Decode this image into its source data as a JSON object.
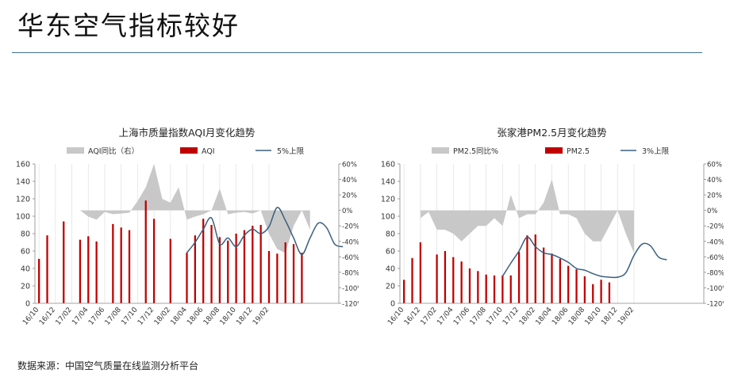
{
  "slide": {
    "title": "华东空气指标较好",
    "source": "数据来源：中国空气质量在线监测分析平台"
  },
  "colors": {
    "bar": "#c00000",
    "area": "#c8c8c8",
    "line": "#3a5f80",
    "rule": "#3f6f8f"
  },
  "chart_data": [
    {
      "type": "bar",
      "title": "上海市质量指数AQI月变化趋势",
      "legend": [
        "AQI同比（右）",
        "AQI",
        "5%上限"
      ],
      "legend_position": "top",
      "x_ticks": [
        "16/10",
        "16/12",
        "17/02",
        "17/04",
        "17/06",
        "17/08",
        "17/10",
        "17/12",
        "18/02",
        "18/04",
        "18/06",
        "18/08",
        "18/10",
        "18/12",
        "19/02"
      ],
      "x_start": "16/10",
      "left_axis": {
        "min": 0,
        "max": 160,
        "step": 20,
        "labels": [
          "0",
          "20",
          "40",
          "60",
          "80",
          "100",
          "120",
          "140",
          "160"
        ]
      },
      "right_axis": {
        "min": -120,
        "max": 60,
        "step": 20,
        "labels": [
          "-120%",
          "-100%",
          "-80%",
          "-60%",
          "-40%",
          "-20%",
          "0%",
          "20%",
          "40%",
          "60%"
        ]
      },
      "series": [
        {
          "name": "AQI",
          "kind": "bar",
          "axis": "left",
          "values": [
            51,
            78,
            null,
            94,
            null,
            73,
            77,
            71,
            null,
            91,
            87,
            84,
            null,
            118,
            97,
            null,
            74,
            null,
            58,
            78,
            97,
            90,
            76,
            72,
            80,
            84,
            89,
            90,
            60,
            57,
            70,
            68,
            58,
            null,
            null,
            null,
            null
          ]
        },
        {
          "name": "AQI同比（右）",
          "kind": "area",
          "axis": "right",
          "values": [
            null,
            null,
            null,
            null,
            null,
            0,
            -8,
            -12,
            -2,
            -5,
            -4,
            -3,
            12,
            30,
            60,
            15,
            10,
            30,
            -12,
            -8,
            -5,
            0,
            28,
            -5,
            -3,
            -2,
            -4,
            0,
            -30,
            -50,
            -55,
            -20,
            0,
            -25,
            null,
            null,
            null
          ]
        },
        {
          "name": "5%上限",
          "kind": "line",
          "axis": "left",
          "values": [
            null,
            null,
            null,
            null,
            null,
            null,
            null,
            null,
            null,
            null,
            null,
            null,
            null,
            null,
            null,
            null,
            null,
            null,
            58,
            70,
            85,
            98,
            68,
            75,
            65,
            78,
            85,
            80,
            88,
            110,
            95,
            75,
            56,
            75,
            92,
            87,
            68,
            65
          ]
        }
      ]
    },
    {
      "type": "bar",
      "title": "张家港PM2.5月变化趋势",
      "legend": [
        "PM2.5同比%",
        "PM2.5",
        "3%上限"
      ],
      "legend_position": "top",
      "x_ticks": [
        "16/10",
        "16/12",
        "17/02",
        "17/04",
        "17/06",
        "17/08",
        "17/10",
        "17/12",
        "18/02",
        "18/04",
        "18/06",
        "18/08",
        "18/10",
        "18/12",
        "19/02"
      ],
      "x_start": "16/10",
      "left_axis": {
        "min": 0,
        "max": 160,
        "step": 20,
        "labels": [
          "0",
          "20",
          "40",
          "60",
          "80",
          "100",
          "120",
          "140",
          "160"
        ]
      },
      "right_axis": {
        "min": -120,
        "max": 60,
        "step": 20,
        "labels": [
          "-120%",
          "-100%",
          "-80%",
          "-60%",
          "-40%",
          "-20%",
          "0%",
          "20%",
          "40%",
          "60%"
        ]
      },
      "series": [
        {
          "name": "PM2.5",
          "kind": "bar",
          "axis": "left",
          "values": [
            27,
            52,
            70,
            null,
            56,
            60,
            53,
            48,
            40,
            37,
            33,
            32,
            32,
            32,
            59,
            78,
            79,
            64,
            57,
            51,
            43,
            39,
            31,
            22,
            27,
            24,
            null,
            null,
            null,
            null,
            null,
            null
          ]
        },
        {
          "name": "PM2.5同比%",
          "kind": "area",
          "axis": "right",
          "values": [
            null,
            null,
            -10,
            -2,
            -25,
            -25,
            -30,
            -40,
            -30,
            -20,
            -20,
            -10,
            -20,
            20,
            -10,
            -5,
            -5,
            10,
            40,
            -5,
            -5,
            -10,
            -30,
            -40,
            -40,
            -20,
            0,
            -30,
            -55,
            null,
            null,
            null
          ]
        },
        {
          "name": "3%上限",
          "kind": "line",
          "axis": "left",
          "values": [
            null,
            null,
            null,
            null,
            null,
            null,
            null,
            null,
            null,
            null,
            null,
            null,
            31,
            46,
            60,
            76,
            65,
            58,
            56,
            52,
            47,
            40,
            38,
            34,
            31,
            30,
            30,
            35,
            55,
            68,
            66,
            53,
            50
          ]
        }
      ]
    }
  ]
}
